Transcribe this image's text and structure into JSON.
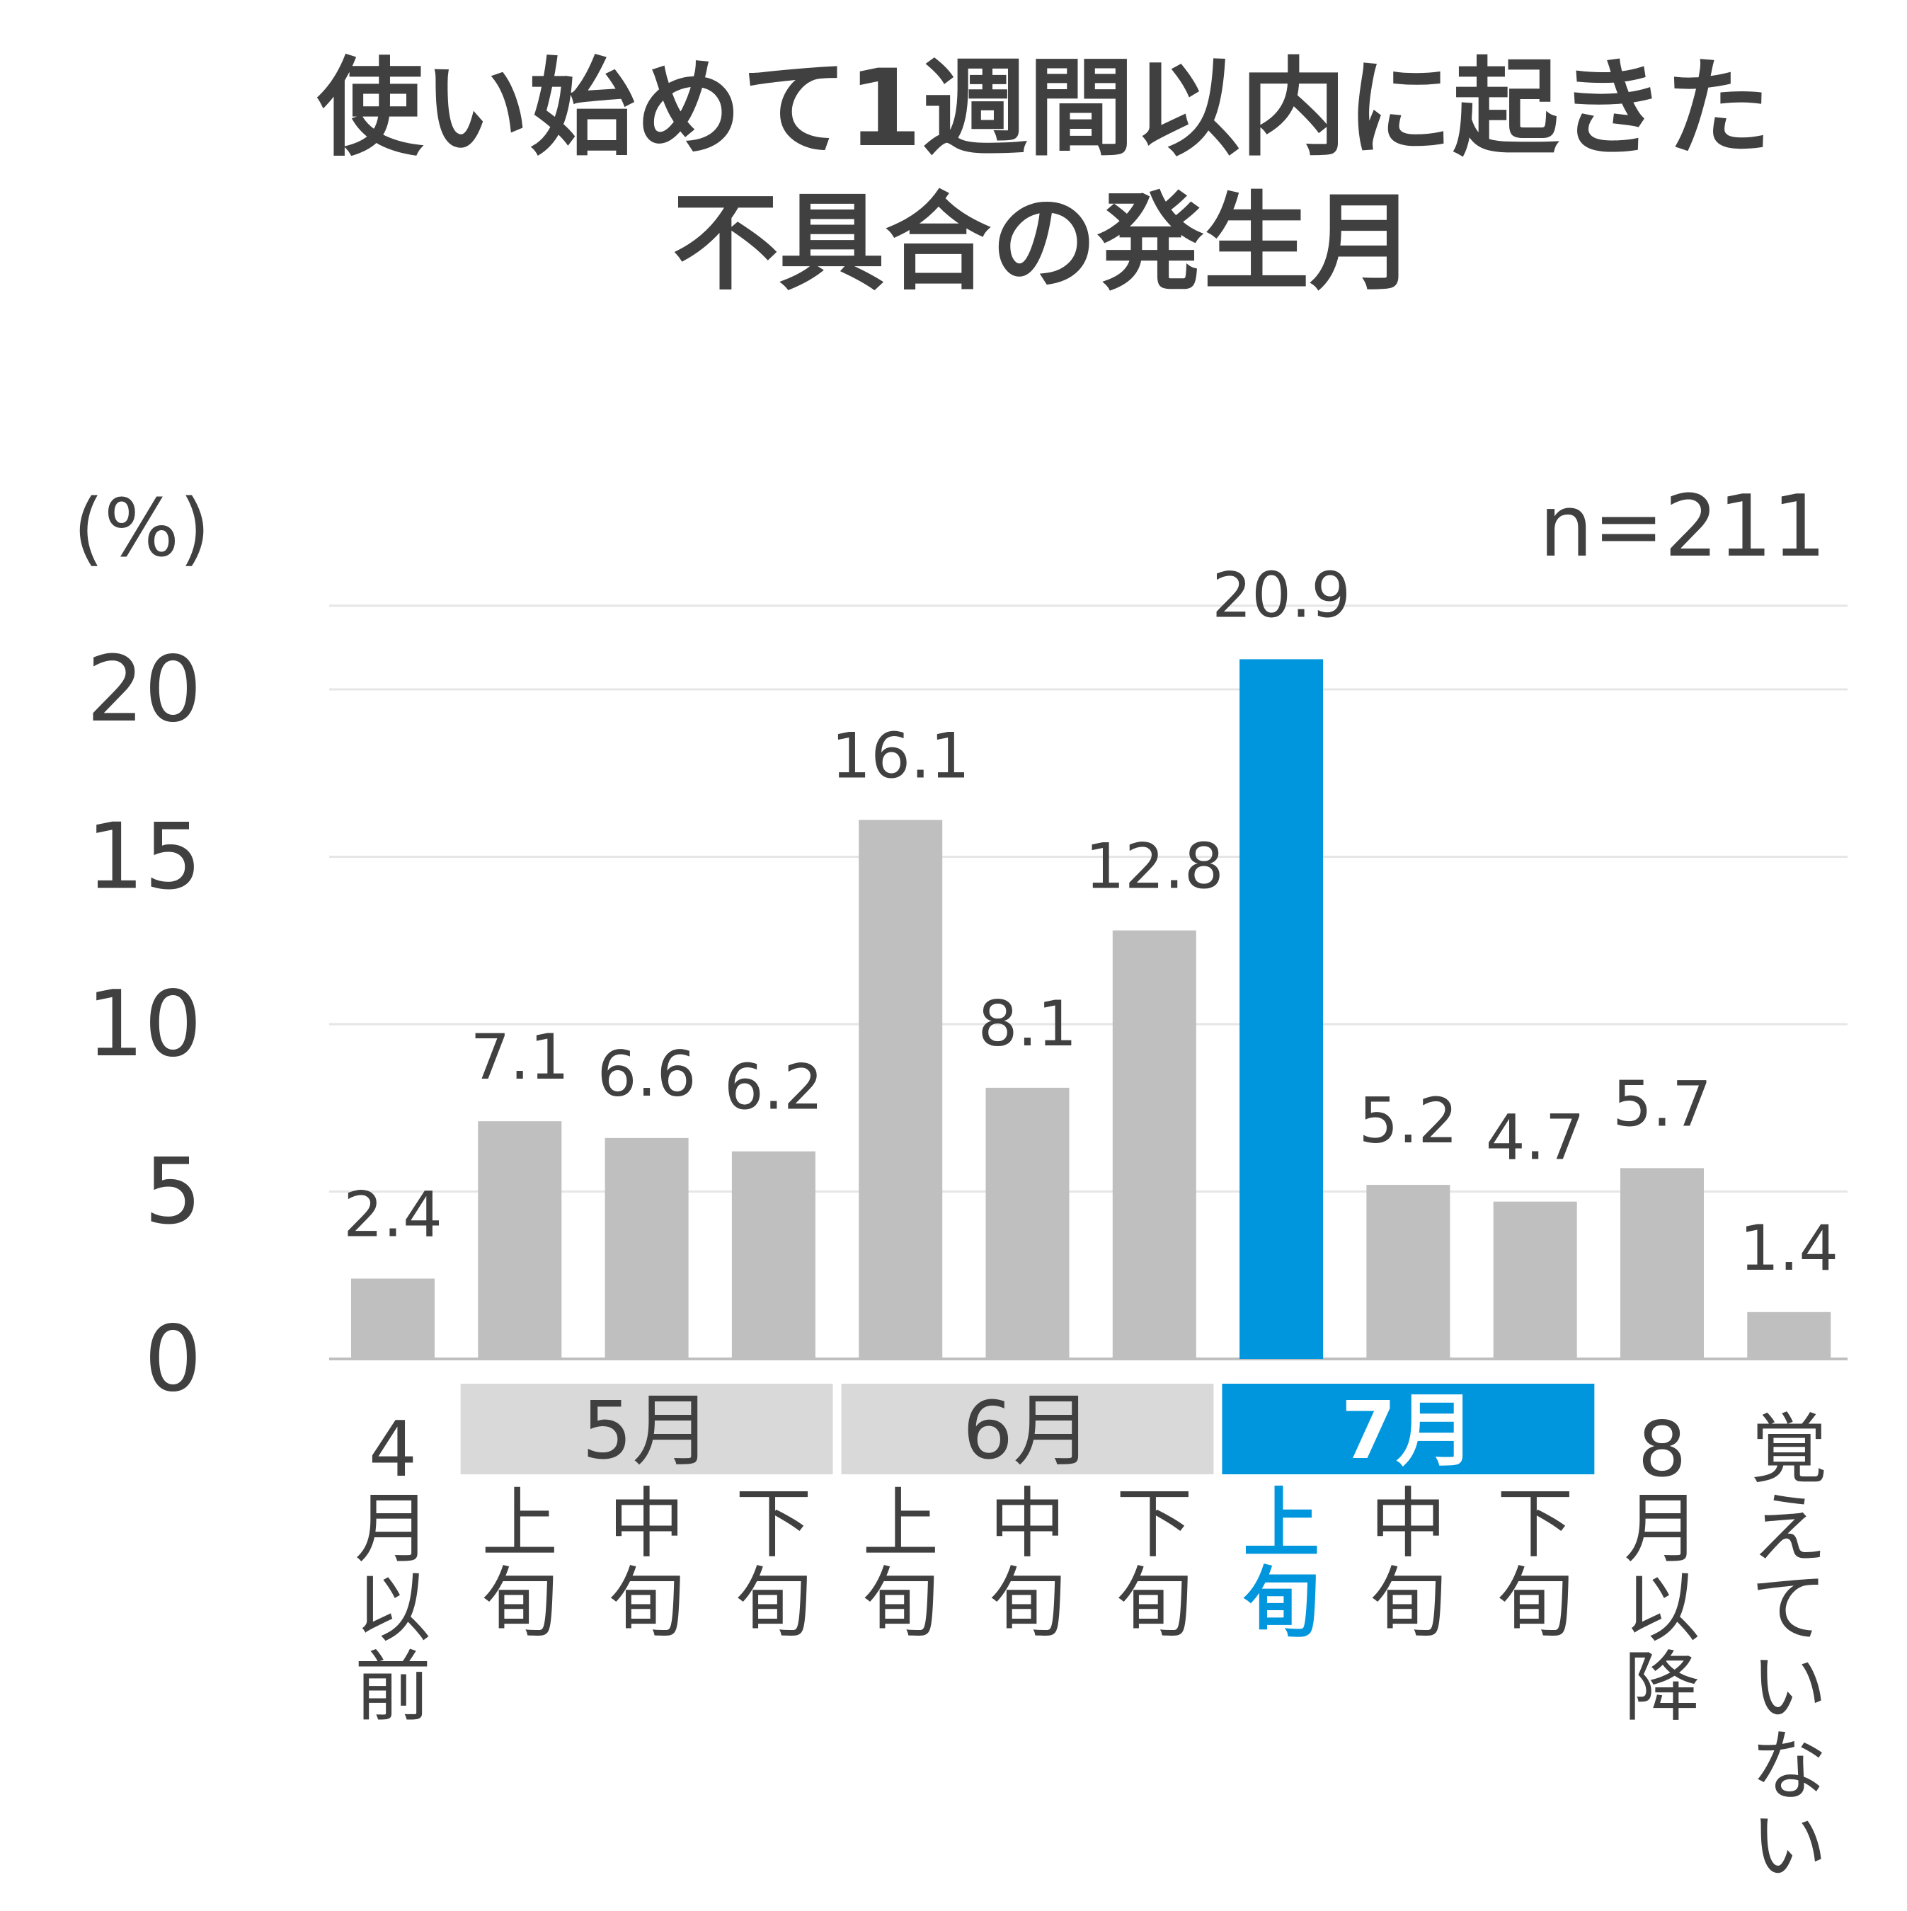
{
  "chart_data": {
    "type": "bar",
    "title_lines": [
      "使い始めて1週間以内に起きた",
      "不具合の発生月"
    ],
    "ylabel": "(%)",
    "sample_size": "n=211",
    "ylim": [
      0,
      22.5
    ],
    "yticks": [
      "0",
      "5",
      "10",
      "15",
      "20"
    ],
    "grid": true,
    "highlight_color": "#0096dd",
    "bar_color": "#bfbfbf",
    "categories": [
      {
        "label": "4月以前",
        "value": 2.4,
        "value_label": "2.4"
      },
      {
        "label": "上旬",
        "value": 7.1,
        "value_label": "7.1"
      },
      {
        "label": "中旬",
        "value": 6.6,
        "value_label": "6.6"
      },
      {
        "label": "下旬",
        "value": 6.2,
        "value_label": "6.2"
      },
      {
        "label": "上旬",
        "value": 16.1,
        "value_label": "16.1"
      },
      {
        "label": "中旬",
        "value": 8.1,
        "value_label": "8.1"
      },
      {
        "label": "下旬",
        "value": 12.8,
        "value_label": "12.8"
      },
      {
        "label": "上旬",
        "value": 20.9,
        "value_label": "20.9",
        "highlight": true
      },
      {
        "label": "中旬",
        "value": 5.2,
        "value_label": "5.2"
      },
      {
        "label": "下旬",
        "value": 4.7,
        "value_label": "4.7"
      },
      {
        "label": "8月以降",
        "value": 5.7,
        "value_label": "5.7"
      },
      {
        "label": "覚えていない",
        "value": 1.4,
        "value_label": "1.4"
      }
    ],
    "month_groups": [
      {
        "label": "5月",
        "start": 1,
        "end": 3
      },
      {
        "label": "6月",
        "start": 4,
        "end": 6
      },
      {
        "label": "7月",
        "start": 7,
        "end": 9,
        "highlight": true
      }
    ]
  }
}
